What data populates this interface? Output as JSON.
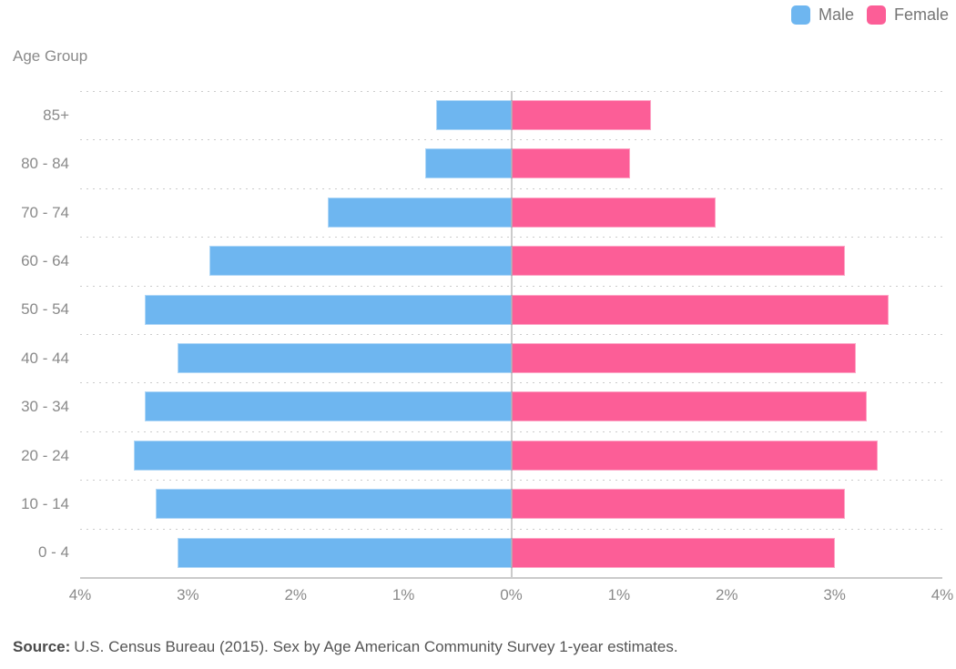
{
  "header": {
    "y_axis_title": "Age Group",
    "legend": [
      {
        "label": "Male",
        "color": "#6eb6f0"
      },
      {
        "label": "Female",
        "color": "#fc5e97"
      }
    ]
  },
  "footer": {
    "source_label": "Source:",
    "source_text": "U.S. Census Bureau (2015). Sex by Age American Community Survey 1-year estimates."
  },
  "chart_data": {
    "type": "bar",
    "variant": "population_pyramid_horizontal",
    "title": "",
    "ylabel": "Age Group",
    "unit": "%",
    "categories": [
      "85+",
      "80 - 84",
      "70 - 74",
      "60 - 64",
      "50 - 54",
      "40 - 44",
      "30 - 34",
      "20 - 24",
      "10 - 14",
      "0 - 4"
    ],
    "series": [
      {
        "name": "Male",
        "side": "left",
        "color": "#6eb6f0",
        "values": [
          0.7,
          0.8,
          1.7,
          2.8,
          3.4,
          3.1,
          3.4,
          3.5,
          3.3,
          3.1
        ]
      },
      {
        "name": "Female",
        "side": "right",
        "color": "#fc5e97",
        "values": [
          1.3,
          1.1,
          1.9,
          3.1,
          3.5,
          3.2,
          3.3,
          3.4,
          3.1,
          3.0
        ]
      }
    ],
    "x_axis": {
      "ticks": [
        "4%",
        "3%",
        "2%",
        "1%",
        "0%",
        "1%",
        "2%",
        "3%",
        "4%"
      ],
      "max_each_side": 4,
      "tick_step": 1
    },
    "layout": {
      "legend_position": "top-right",
      "grid": "horizontal-dotted",
      "grid_color": "#cccccc",
      "axis_line_color": "#cbcbcb",
      "center_line_color": "#8c8c8c",
      "label_color": "#8a8a8a"
    }
  }
}
